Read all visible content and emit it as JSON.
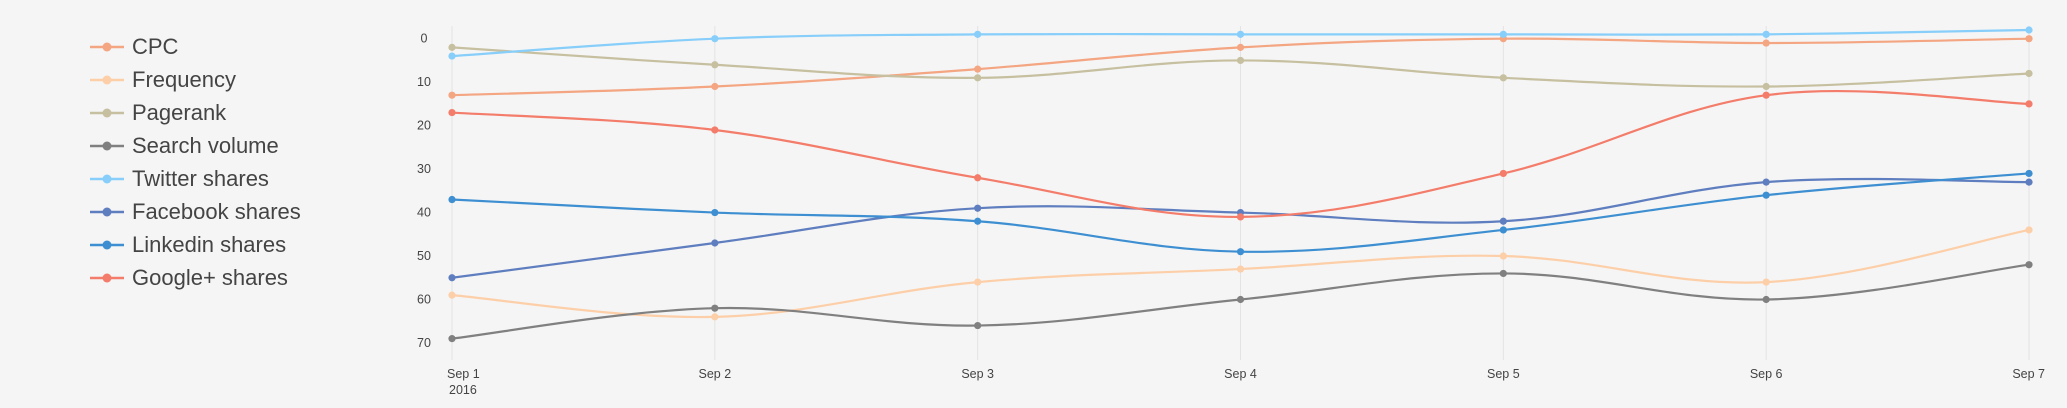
{
  "chart_data": {
    "type": "line",
    "x": [
      "Sep 1",
      "Sep 2",
      "Sep 3",
      "Sep 4",
      "Sep 5",
      "Sep 6",
      "Sep 7"
    ],
    "x_sublabels": [
      "2016",
      "",
      "",
      "",
      "",
      "",
      ""
    ],
    "y_axis": {
      "reversed": true,
      "range": [
        -2,
        73
      ],
      "ticks": [
        0,
        10,
        20,
        30,
        40,
        50,
        60,
        70
      ],
      "tick_labels": [
        "0",
        "10",
        "20",
        "30",
        "40",
        "50",
        "60",
        "70"
      ]
    },
    "grid": {
      "vertical": true,
      "horizontal": false
    },
    "legend": {
      "placement": "left"
    },
    "series": [
      {
        "name": "CPC",
        "color": "#f4a582",
        "values": [
          13,
          11,
          7,
          2,
          0,
          1,
          0
        ]
      },
      {
        "name": "Frequency",
        "color": "#fdcfa8",
        "values": [
          59,
          64,
          56,
          53,
          50,
          56,
          44
        ]
      },
      {
        "name": "Pagerank",
        "color": "#c6c0a0",
        "values": [
          2,
          6,
          9,
          5,
          9,
          11,
          8
        ]
      },
      {
        "name": "Search volume",
        "color": "#808080",
        "values": [
          69,
          62,
          66,
          60,
          54,
          60,
          52
        ]
      },
      {
        "name": "Twitter shares",
        "color": "#87cefa",
        "values": [
          4,
          0,
          -1,
          -1,
          -1,
          -1,
          -2
        ]
      },
      {
        "name": "Facebook shares",
        "color": "#5f7ebf",
        "values": [
          55,
          47,
          39,
          40,
          42,
          33,
          33
        ]
      },
      {
        "name": "Linkedin shares",
        "color": "#3d8fd1",
        "values": [
          37,
          40,
          42,
          49,
          44,
          36,
          31
        ]
      },
      {
        "name": "Google+ shares",
        "color": "#f47c6a",
        "values": [
          17,
          21,
          32,
          41,
          31,
          13,
          15
        ]
      }
    ]
  }
}
